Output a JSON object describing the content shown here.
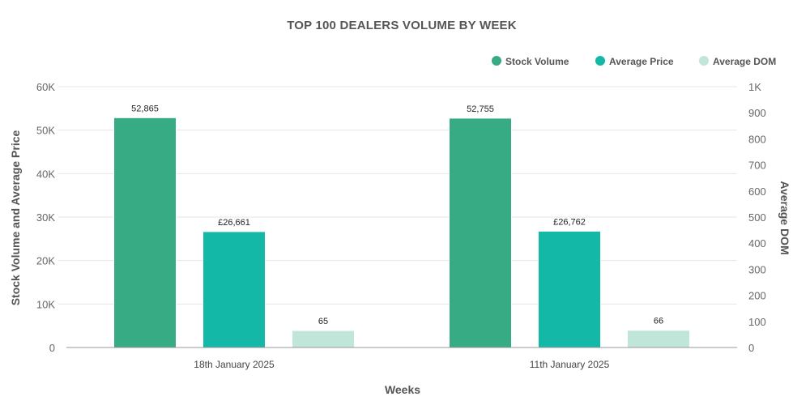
{
  "chart_data": {
    "type": "bar",
    "title": "TOP 100 DEALERS VOLUME BY WEEK",
    "xlabel": "Weeks",
    "ylabel_left": "Stock Volume and Average Price",
    "ylabel_right": "Average DOM",
    "categories": [
      "18th January 2025",
      "11th January 2025"
    ],
    "y_left": {
      "min": 0,
      "max": 60000,
      "ticks": [
        0,
        10000,
        20000,
        30000,
        40000,
        50000,
        60000
      ],
      "tick_labels": [
        "0",
        "10K",
        "20K",
        "30K",
        "40K",
        "50K",
        "60K"
      ]
    },
    "y_right": {
      "min": 0,
      "max": 1000,
      "ticks": [
        0,
        100,
        200,
        300,
        400,
        500,
        600,
        700,
        800,
        900,
        1000
      ],
      "tick_labels": [
        "0",
        "100",
        "200",
        "300",
        "400",
        "500",
        "600",
        "700",
        "800",
        "900",
        "1K"
      ]
    },
    "series": [
      {
        "name": "Stock Volume",
        "axis": "left",
        "color": "#36ab84",
        "values": [
          52865,
          52755
        ],
        "labels": [
          "52,865",
          "52,755"
        ]
      },
      {
        "name": "Average Price",
        "axis": "left",
        "color": "#14b8a6",
        "values": [
          26661,
          26762
        ],
        "labels": [
          "£26,661",
          "£26,762"
        ]
      },
      {
        "name": "Average DOM",
        "axis": "right",
        "color": "#bfe6d8",
        "values": [
          65,
          66
        ],
        "labels": [
          "65",
          "66"
        ]
      }
    ],
    "grid": true,
    "legend_position": "top-right"
  }
}
